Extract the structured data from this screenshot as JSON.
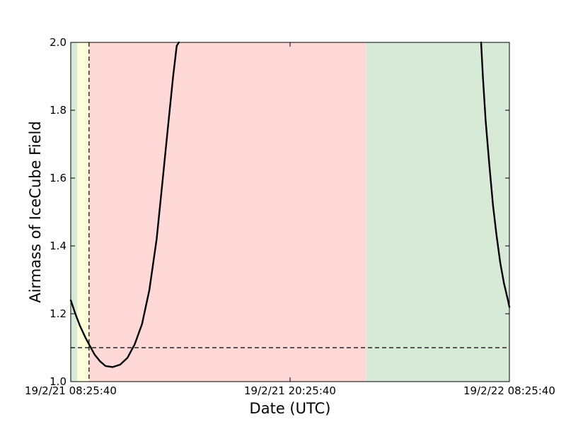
{
  "chart_data": {
    "type": "line",
    "title": "",
    "xlabel": "Date (UTC)",
    "ylabel": "Airmass of IceCube Field",
    "x_start": "19/2/21 08:25:40",
    "x_end": "19/2/22 08:25:40",
    "xlim_hours": [
      0,
      24
    ],
    "ylim": [
      1.0,
      2.0
    ],
    "xticks": [
      {
        "hours": 0,
        "label": "19/2/21 08:25:40"
      },
      {
        "hours": 12,
        "label": "19/2/21 20:25:40"
      },
      {
        "hours": 24,
        "label": "19/2/22 08:25:40"
      }
    ],
    "yticks": [
      {
        "value": 1.0,
        "label": "1.0"
      },
      {
        "value": 1.2,
        "label": "1.2"
      },
      {
        "value": 1.4,
        "label": "1.4"
      },
      {
        "value": 1.6,
        "label": "1.6"
      },
      {
        "value": 1.8,
        "label": "1.8"
      },
      {
        "value": 2.0,
        "label": "2.0"
      }
    ],
    "background_bands": [
      {
        "from_hours": 0.0,
        "to_hours": 0.35,
        "color": "#d7ead7"
      },
      {
        "from_hours": 0.35,
        "to_hours": 1.0,
        "color": "#ffffd9"
      },
      {
        "from_hours": 1.0,
        "to_hours": 16.15,
        "color": "#ffd8d8"
      },
      {
        "from_hours": 16.15,
        "to_hours": 24.0,
        "color": "#d7ead7"
      }
    ],
    "series": [
      {
        "color": "#000000",
        "segments": [
          [
            [
              0.0,
              1.24
            ],
            [
              0.25,
              1.2
            ],
            [
              0.5,
              1.165
            ],
            [
              0.8,
              1.13
            ],
            [
              1.0,
              1.11
            ],
            [
              1.3,
              1.08
            ],
            [
              1.6,
              1.06
            ],
            [
              1.9,
              1.046
            ],
            [
              2.3,
              1.043
            ],
            [
              2.7,
              1.05
            ],
            [
              3.1,
              1.07
            ],
            [
              3.5,
              1.11
            ],
            [
              3.9,
              1.17
            ],
            [
              4.3,
              1.27
            ],
            [
              4.7,
              1.42
            ],
            [
              5.0,
              1.58
            ],
            [
              5.3,
              1.74
            ],
            [
              5.6,
              1.9
            ],
            [
              5.8,
              1.99
            ],
            [
              5.92,
              2.0
            ]
          ],
          [
            [
              22.45,
              2.0
            ],
            [
              22.55,
              1.9
            ],
            [
              22.7,
              1.77
            ],
            [
              22.9,
              1.64
            ],
            [
              23.1,
              1.52
            ],
            [
              23.3,
              1.43
            ],
            [
              23.5,
              1.35
            ],
            [
              23.7,
              1.29
            ],
            [
              23.9,
              1.245
            ],
            [
              24.0,
              1.22
            ]
          ]
        ]
      }
    ],
    "reference_lines": [
      {
        "orientation": "horizontal",
        "value": 1.1,
        "style": "dashed",
        "color": "#000000"
      },
      {
        "orientation": "vertical",
        "hours": 1.0,
        "style": "dashed",
        "color": "#000000"
      }
    ],
    "grid": false,
    "legend": "none"
  }
}
